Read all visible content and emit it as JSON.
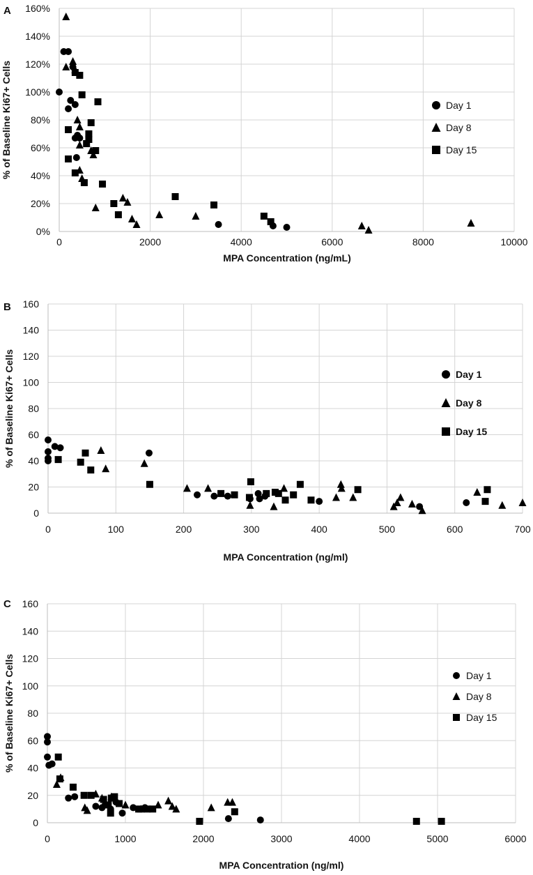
{
  "chart_data": [
    {
      "panel_label": "A",
      "type": "scatter",
      "xlabel": "MPA Concentration (ng/mL)",
      "ylabel": "% of Baseline Ki67+ Cells",
      "xlim": [
        0,
        10000
      ],
      "ylim": [
        0,
        160
      ],
      "x_ticks": [
        "0",
        "2000",
        "4000",
        "6000",
        "8000",
        "10000"
      ],
      "y_ticks": [
        "0%",
        "20%",
        "40%",
        "60%",
        "80%",
        "100%",
        "120%",
        "140%",
        "160%"
      ],
      "legend_position": "right",
      "series": [
        {
          "name": "Day 1",
          "marker": "circle",
          "points": [
            [
              0,
              100
            ],
            [
              100,
              129
            ],
            [
              200,
              129
            ],
            [
              300,
              118
            ],
            [
              200,
              88
            ],
            [
              250,
              94
            ],
            [
              350,
              91
            ],
            [
              400,
              69
            ],
            [
              350,
              67
            ],
            [
              450,
              67
            ],
            [
              380,
              53
            ],
            [
              3500,
              5
            ],
            [
              4700,
              4
            ],
            [
              5000,
              3
            ]
          ]
        },
        {
          "name": "Day 8",
          "marker": "triangle",
          "points": [
            [
              150,
              154
            ],
            [
              150,
              118
            ],
            [
              300,
              122
            ],
            [
              350,
              116
            ],
            [
              400,
              80
            ],
            [
              450,
              75
            ],
            [
              450,
              62
            ],
            [
              450,
              44
            ],
            [
              500,
              38
            ],
            [
              700,
              58
            ],
            [
              750,
              55
            ],
            [
              800,
              17
            ],
            [
              1400,
              24
            ],
            [
              1500,
              21
            ],
            [
              1600,
              9
            ],
            [
              1700,
              5
            ],
            [
              2200,
              12
            ],
            [
              3000,
              11
            ],
            [
              6650,
              4
            ],
            [
              6800,
              1
            ],
            [
              9050,
              6
            ]
          ]
        },
        {
          "name": "Day 15",
          "marker": "square",
          "points": [
            [
              200,
              73
            ],
            [
              200,
              52
            ],
            [
              350,
              42
            ],
            [
              350,
              114
            ],
            [
              450,
              112
            ],
            [
              500,
              98
            ],
            [
              550,
              35
            ],
            [
              600,
              63
            ],
            [
              650,
              66
            ],
            [
              650,
              70
            ],
            [
              700,
              78
            ],
            [
              800,
              58
            ],
            [
              850,
              93
            ],
            [
              950,
              34
            ],
            [
              1200,
              20
            ],
            [
              1300,
              12
            ],
            [
              2550,
              25
            ],
            [
              3400,
              19
            ],
            [
              4500,
              11
            ],
            [
              4650,
              7
            ]
          ]
        }
      ]
    },
    {
      "panel_label": "B",
      "type": "scatter",
      "xlabel": "MPA Concentration  (ng/ml)",
      "ylabel": "% of Baseline Ki67+ Cells",
      "xlim": [
        0,
        700
      ],
      "ylim": [
        0,
        160
      ],
      "x_ticks": [
        "0",
        "100",
        "200",
        "300",
        "400",
        "500",
        "600",
        "700"
      ],
      "y_ticks": [
        "0",
        "20",
        "40",
        "60",
        "80",
        "100",
        "120",
        "140",
        "160"
      ],
      "legend_position": "right",
      "series": [
        {
          "name": "Day 1",
          "marker": "circle",
          "points": [
            [
              0,
              56
            ],
            [
              0,
              47
            ],
            [
              0,
              42
            ],
            [
              0,
              40
            ],
            [
              10,
              51
            ],
            [
              18,
              50
            ],
            [
              149,
              46
            ],
            [
              220,
              14
            ],
            [
              245,
              13
            ],
            [
              265,
              13
            ],
            [
              298,
              11
            ],
            [
              310,
              15
            ],
            [
              312,
              11
            ],
            [
              320,
              13
            ],
            [
              400,
              9
            ],
            [
              548,
              5
            ],
            [
              617,
              8
            ]
          ]
        },
        {
          "name": "Day 8",
          "marker": "triangle",
          "points": [
            [
              78,
              48
            ],
            [
              85,
              34
            ],
            [
              142,
              38
            ],
            [
              205,
              19
            ],
            [
              236,
              19
            ],
            [
              298,
              6
            ],
            [
              333,
              5
            ],
            [
              348,
              19
            ],
            [
              425,
              12
            ],
            [
              432,
              22
            ],
            [
              433,
              19
            ],
            [
              450,
              12
            ],
            [
              510,
              5
            ],
            [
              515,
              8
            ],
            [
              520,
              12
            ],
            [
              537,
              7
            ],
            [
              552,
              2
            ],
            [
              633,
              16
            ],
            [
              670,
              6
            ],
            [
              700,
              8
            ]
          ]
        },
        {
          "name": "Day 15",
          "marker": "square",
          "points": [
            [
              15,
              41
            ],
            [
              48,
              39
            ],
            [
              55,
              46
            ],
            [
              63,
              33
            ],
            [
              150,
              22
            ],
            [
              255,
              15
            ],
            [
              275,
              14
            ],
            [
              297,
              12
            ],
            [
              299,
              24
            ],
            [
              322,
              15
            ],
            [
              335,
              16
            ],
            [
              340,
              15
            ],
            [
              350,
              10
            ],
            [
              362,
              14
            ],
            [
              372,
              22
            ],
            [
              388,
              10
            ],
            [
              457,
              18
            ],
            [
              645,
              9
            ],
            [
              648,
              18
            ]
          ]
        }
      ]
    },
    {
      "panel_label": "C",
      "type": "scatter",
      "xlabel": "MPA Concentration (ng/ml)",
      "ylabel": "% of Baseline Ki67+ Cells",
      "xlim": [
        0,
        6000
      ],
      "ylim": [
        0,
        160
      ],
      "x_ticks": [
        "0",
        "1000",
        "2000",
        "3000",
        "4000",
        "5000",
        "6000"
      ],
      "y_ticks": [
        "0",
        "20",
        "40",
        "60",
        "80",
        "100",
        "120",
        "140",
        "160"
      ],
      "legend_position": "right",
      "series": [
        {
          "name": "Day 1",
          "marker": "circle",
          "points": [
            [
              0,
              63
            ],
            [
              0,
              59
            ],
            [
              0,
              48
            ],
            [
              20,
              42
            ],
            [
              60,
              43
            ],
            [
              270,
              18
            ],
            [
              350,
              19
            ],
            [
              620,
              12
            ],
            [
              700,
              11
            ],
            [
              740,
              13
            ],
            [
              810,
              10
            ],
            [
              880,
              15
            ],
            [
              960,
              7
            ],
            [
              1100,
              11
            ],
            [
              1200,
              10
            ],
            [
              1250,
              11
            ],
            [
              2320,
              3
            ],
            [
              2730,
              2
            ]
          ]
        },
        {
          "name": "Day 8",
          "marker": "triangle",
          "points": [
            [
              120,
              28
            ],
            [
              170,
              33
            ],
            [
              480,
              11
            ],
            [
              510,
              9
            ],
            [
              620,
              21
            ],
            [
              700,
              18
            ],
            [
              820,
              19
            ],
            [
              1000,
              13
            ],
            [
              1200,
              10
            ],
            [
              1420,
              13
            ],
            [
              1550,
              16
            ],
            [
              1600,
              12
            ],
            [
              1650,
              10
            ],
            [
              2100,
              11
            ],
            [
              2310,
              15
            ],
            [
              2370,
              15
            ]
          ]
        },
        {
          "name": "Day 15",
          "marker": "square",
          "points": [
            [
              140,
              48
            ],
            [
              160,
              32
            ],
            [
              330,
              26
            ],
            [
              470,
              20
            ],
            [
              560,
              20
            ],
            [
              720,
              17
            ],
            [
              780,
              13
            ],
            [
              810,
              7
            ],
            [
              820,
              18
            ],
            [
              860,
              19
            ],
            [
              920,
              14
            ],
            [
              1170,
              10
            ],
            [
              1280,
              10
            ],
            [
              1350,
              10
            ],
            [
              1950,
              1
            ],
            [
              2400,
              8
            ],
            [
              4730,
              1
            ],
            [
              5050,
              1
            ]
          ]
        }
      ]
    }
  ]
}
